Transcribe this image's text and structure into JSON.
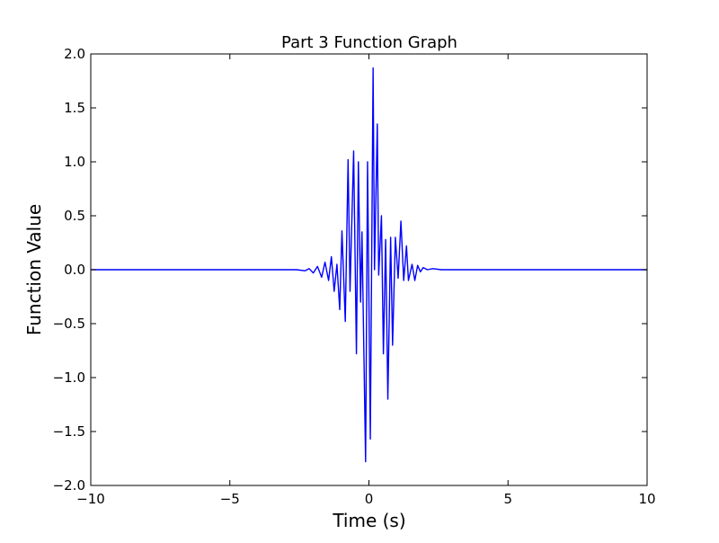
{
  "chart_data": {
    "type": "line",
    "title": "Part 3 Function Graph",
    "xlabel": "Time (s)",
    "ylabel": "Function Value",
    "xlim": [
      -10,
      10
    ],
    "ylim": [
      -2.0,
      2.0
    ],
    "x_ticks": [
      -10,
      -5,
      0,
      5,
      10
    ],
    "x_tick_labels": [
      "−10",
      "−5",
      "0",
      "5",
      "10"
    ],
    "y_ticks": [
      2.0,
      1.5,
      1.0,
      0.5,
      0.0,
      -0.5,
      -1.0,
      -1.5,
      -2.0
    ],
    "y_tick_labels": [
      "2.0",
      "1.5",
      "1.0",
      "0.5",
      "0.0",
      "−0.5",
      "−1.0",
      "−1.5",
      "−2.0"
    ],
    "grid": false,
    "series": [
      {
        "color": "#0000ff",
        "x": [
          -10,
          -2.6,
          -2.3,
          -2.15,
          -2.0,
          -1.85,
          -1.7,
          -1.58,
          -1.45,
          -1.35,
          -1.25,
          -1.15,
          -1.05,
          -0.97,
          -0.85,
          -0.75,
          -0.68,
          -0.55,
          -0.45,
          -0.38,
          -0.3,
          -0.25,
          -0.12,
          -0.05,
          0.05,
          0.15,
          0.2,
          0.3,
          0.35,
          0.45,
          0.52,
          0.6,
          0.68,
          0.78,
          0.85,
          0.95,
          1.05,
          1.15,
          1.25,
          1.35,
          1.42,
          1.55,
          1.65,
          1.75,
          1.85,
          1.95,
          2.1,
          2.3,
          2.6,
          10
        ],
        "y": [
          0.0,
          0.0,
          -0.01,
          0.01,
          -0.03,
          0.03,
          -0.07,
          0.07,
          -0.1,
          0.12,
          -0.2,
          0.05,
          -0.37,
          0.36,
          -0.48,
          1.02,
          -0.2,
          1.1,
          -0.78,
          1.0,
          -0.3,
          0.35,
          -1.78,
          1.0,
          -1.57,
          1.87,
          0.0,
          1.35,
          -0.05,
          0.5,
          -0.78,
          0.28,
          -1.2,
          0.3,
          -0.7,
          0.3,
          -0.08,
          0.45,
          -0.1,
          0.22,
          -0.1,
          0.05,
          -0.1,
          0.04,
          -0.02,
          0.02,
          0.0,
          0.01,
          0.0,
          0.0
        ]
      }
    ]
  }
}
